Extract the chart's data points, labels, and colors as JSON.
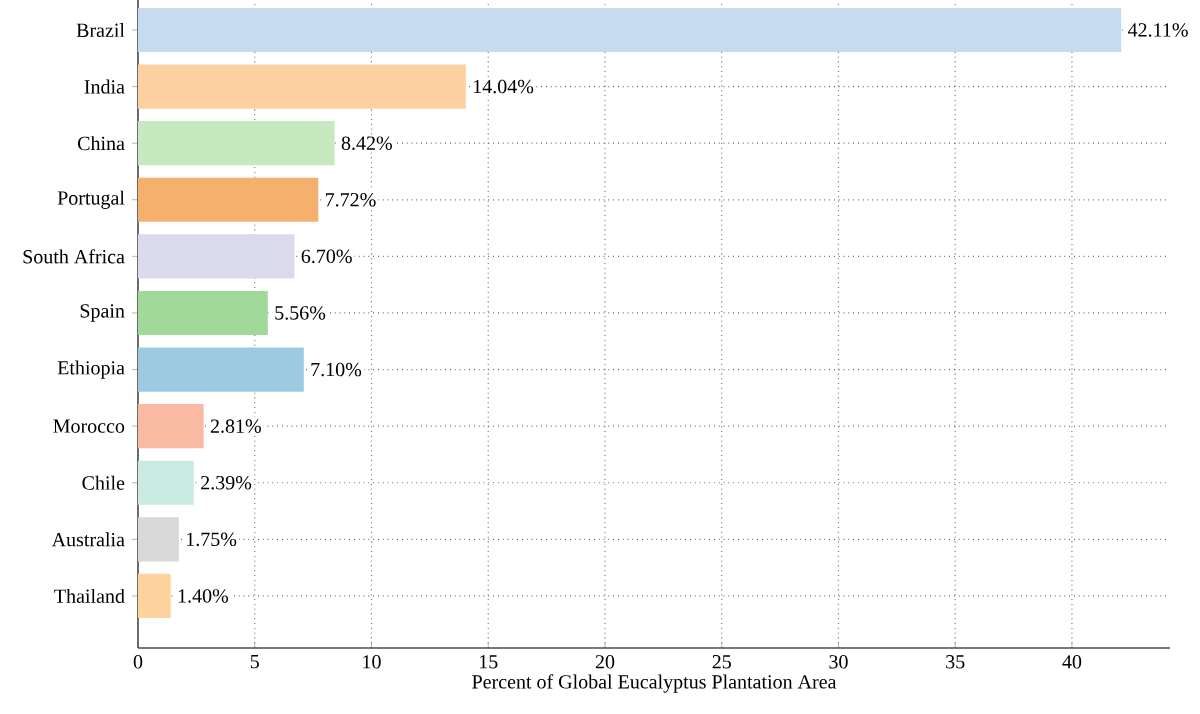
{
  "chart_data": {
    "type": "bar",
    "orientation": "horizontal",
    "xlabel": "Percent of Global Eucalyptus Plantation Area",
    "categories": [
      "Brazil",
      "India",
      "China",
      "Portugal",
      "South Africa",
      "Spain",
      "Ethiopia",
      "Morocco",
      "Chile",
      "Australia",
      "Thailand"
    ],
    "values": [
      42.11,
      14.04,
      8.42,
      7.72,
      6.7,
      5.56,
      7.1,
      2.81,
      2.39,
      1.75,
      1.4
    ],
    "value_labels": [
      "42.11%",
      "14.04%",
      "8.42%",
      "7.72%",
      "6.70%",
      "5.56%",
      "7.10%",
      "2.81%",
      "2.39%",
      "1.75%",
      "1.40%"
    ],
    "colors": [
      "#c6dbef",
      "#fdd0a2",
      "#c7e9c0",
      "#f5b06e",
      "#dadaeb",
      "#a1d99b",
      "#9ecae1",
      "#f9b9a2",
      "#cbeae2",
      "#d9d9d9",
      "#fdd49e"
    ],
    "xlim": [
      0,
      44.2
    ],
    "xticks": [
      0,
      5,
      10,
      15,
      20,
      25,
      30,
      35,
      40
    ],
    "grid": true
  }
}
